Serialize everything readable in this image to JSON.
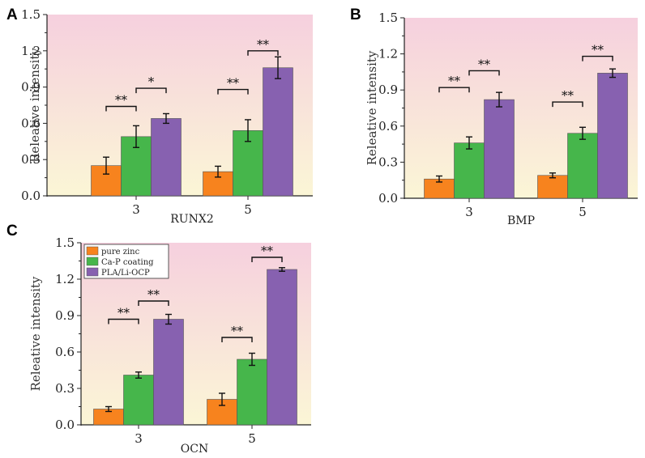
{
  "colors": {
    "pure_zinc": "#f7831e",
    "ca_p_coating": "#46b64b",
    "pla_li_ocp": "#8761b0",
    "bg_top": "#f6d0de",
    "bg_bottom": "#fbf6d6"
  },
  "chart_data": [
    {
      "id": "A",
      "type": "bar",
      "panel_label": "A",
      "xlabel": "RUNX2",
      "ylabel": "Releative intensity",
      "ylim": [
        0,
        1.5
      ],
      "yticks": [
        "0.0",
        "0.3",
        "0.6",
        "0.9",
        "1.2",
        "1.5"
      ],
      "categories": [
        "3",
        "5"
      ],
      "series": [
        {
          "name": "pure zinc",
          "color_key": "pure_zinc",
          "values": [
            0.25,
            0.2
          ],
          "errors": [
            0.07,
            0.045
          ]
        },
        {
          "name": "Ca-P coating",
          "color_key": "ca_p_coating",
          "values": [
            0.49,
            0.54
          ],
          "errors": [
            0.09,
            0.09
          ]
        },
        {
          "name": "PLA/Li-OCP",
          "color_key": "pla_li_ocp",
          "values": [
            0.64,
            1.06
          ],
          "errors": [
            0.04,
            0.09
          ]
        }
      ],
      "significance": [
        {
          "category": 0,
          "from": 0,
          "to": 1,
          "y": 0.74,
          "label": "**"
        },
        {
          "category": 0,
          "from": 1,
          "to": 2,
          "y": 0.89,
          "label": "*"
        },
        {
          "category": 1,
          "from": 0,
          "to": 1,
          "y": 0.88,
          "label": "**"
        },
        {
          "category": 1,
          "from": 1,
          "to": 2,
          "y": 1.2,
          "label": "**"
        }
      ],
      "legend": false
    },
    {
      "id": "B",
      "type": "bar",
      "panel_label": "B",
      "xlabel": "BMP",
      "ylabel": "Releative intensity",
      "ylim": [
        0,
        1.5
      ],
      "yticks": [
        "0.0",
        "0.3",
        "0.6",
        "0.9",
        "1.2",
        "1.5"
      ],
      "categories": [
        "3",
        "5"
      ],
      "series": [
        {
          "name": "pure zinc",
          "color_key": "pure_zinc",
          "values": [
            0.16,
            0.19
          ],
          "errors": [
            0.025,
            0.02
          ]
        },
        {
          "name": "Ca-P coating",
          "color_key": "ca_p_coating",
          "values": [
            0.46,
            0.54
          ],
          "errors": [
            0.05,
            0.05
          ]
        },
        {
          "name": "PLA/Li-OCP",
          "color_key": "pla_li_ocp",
          "values": [
            0.82,
            1.04
          ],
          "errors": [
            0.06,
            0.035
          ]
        }
      ],
      "significance": [
        {
          "category": 0,
          "from": 0,
          "to": 1,
          "y": 0.92,
          "label": "**"
        },
        {
          "category": 0,
          "from": 1,
          "to": 2,
          "y": 1.06,
          "label": "**"
        },
        {
          "category": 1,
          "from": 0,
          "to": 1,
          "y": 0.8,
          "label": "**"
        },
        {
          "category": 1,
          "from": 1,
          "to": 2,
          "y": 1.18,
          "label": "**"
        }
      ],
      "legend": false
    },
    {
      "id": "C",
      "type": "bar",
      "panel_label": "C",
      "xlabel": "OCN",
      "ylabel": "Releative intensity",
      "ylim": [
        0,
        1.5
      ],
      "yticks": [
        "0.0",
        "0.3",
        "0.6",
        "0.9",
        "1.2",
        "1.5"
      ],
      "categories": [
        "3",
        "5"
      ],
      "series": [
        {
          "name": "pure zinc",
          "color_key": "pure_zinc",
          "values": [
            0.13,
            0.21
          ],
          "errors": [
            0.02,
            0.05
          ]
        },
        {
          "name": "Ca-P coating",
          "color_key": "ca_p_coating",
          "values": [
            0.41,
            0.54
          ],
          "errors": [
            0.025,
            0.05
          ]
        },
        {
          "name": "PLA/Li-OCP",
          "color_key": "pla_li_ocp",
          "values": [
            0.87,
            1.28
          ],
          "errors": [
            0.04,
            0.015
          ]
        }
      ],
      "significance": [
        {
          "category": 0,
          "from": 0,
          "to": 1,
          "y": 0.87,
          "label": "**"
        },
        {
          "category": 0,
          "from": 1,
          "to": 2,
          "y": 1.02,
          "label": "**"
        },
        {
          "category": 1,
          "from": 0,
          "to": 1,
          "y": 0.72,
          "label": "**"
        },
        {
          "category": 1,
          "from": 1,
          "to": 2,
          "y": 1.38,
          "label": "**"
        }
      ],
      "legend": true,
      "legend_position": "top-left"
    }
  ]
}
